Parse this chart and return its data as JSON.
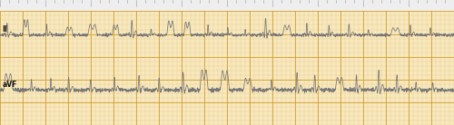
{
  "bg_color": "#f7e8c0",
  "grid_minor_color": "#e8c878",
  "grid_major_color": "#d4a030",
  "ruler_bg": "#eeeeee",
  "trace_color": "#777777",
  "label_color": "#111111",
  "figsize": [
    5.0,
    1.38
  ],
  "dpi": 100,
  "label_II": "II",
  "label_aVF": "aVF",
  "n_points": 2500,
  "II_baseline": 0.72,
  "aVF_baseline": 0.28,
  "II_amp": 0.1,
  "aVF_amp": 0.13
}
